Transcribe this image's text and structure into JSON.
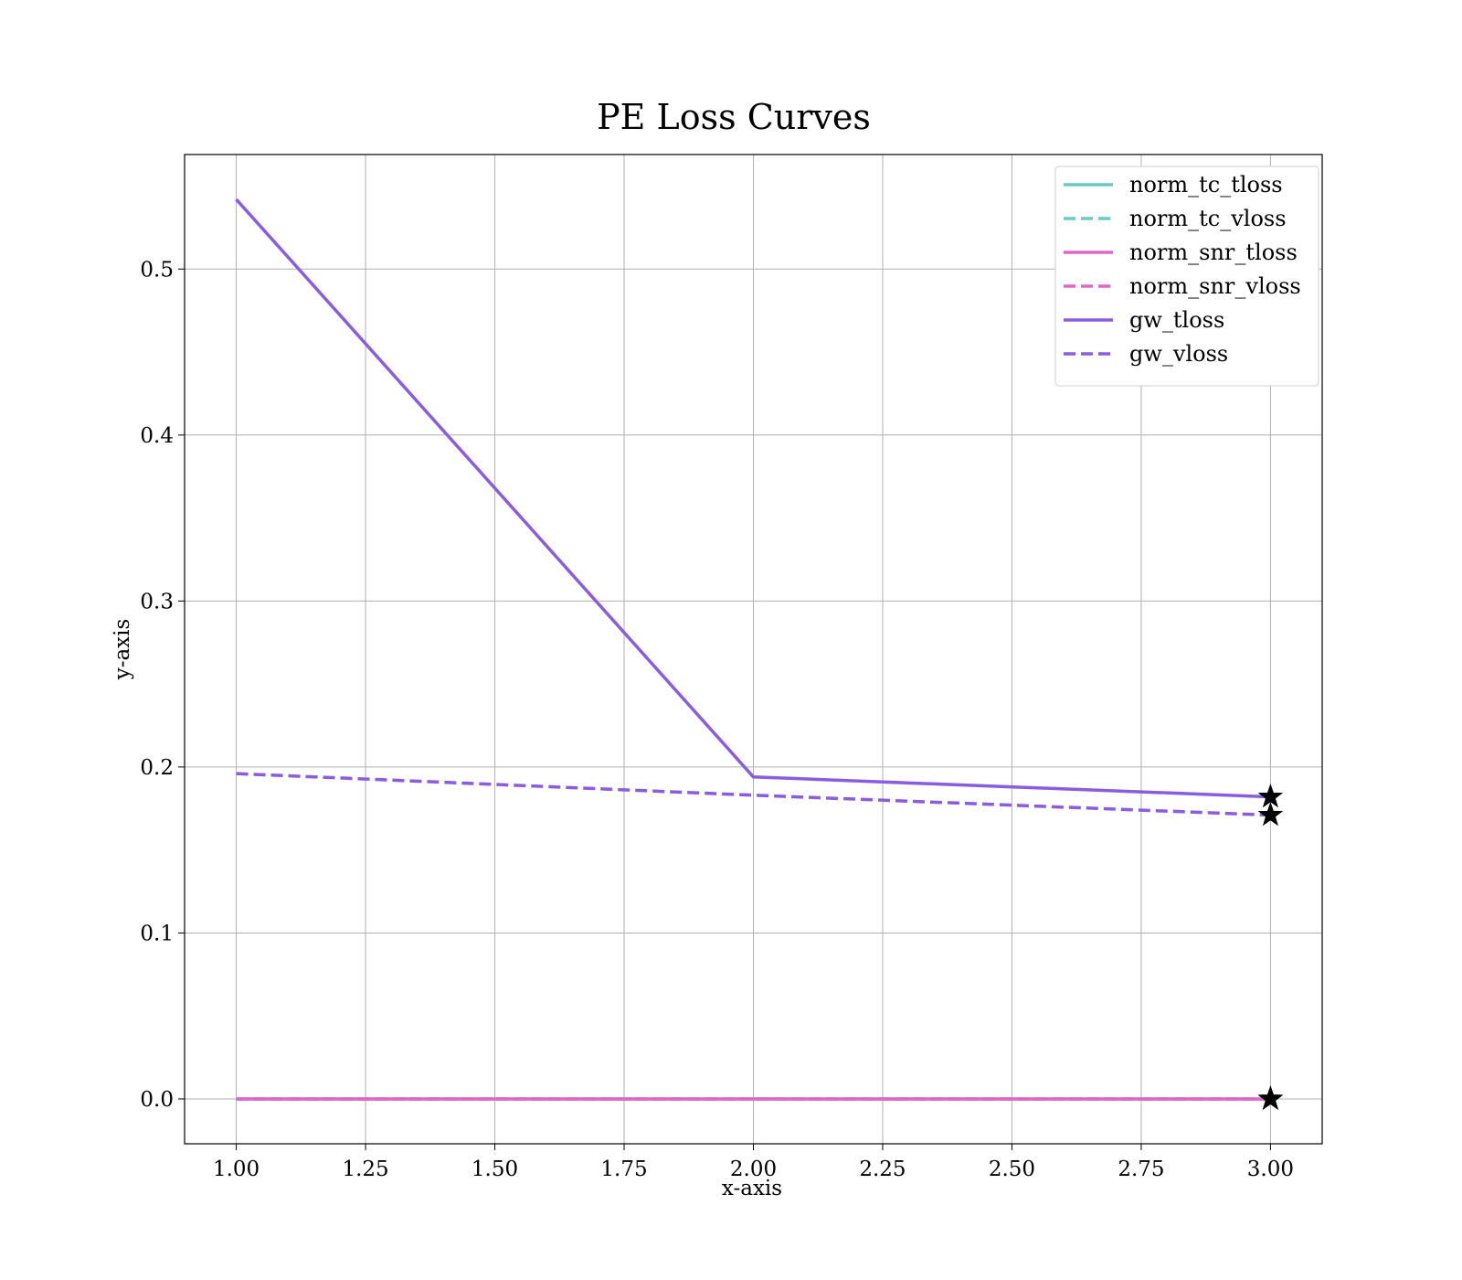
{
  "chart_data": {
    "type": "line",
    "title": "PE Loss Curves",
    "xlabel": "x-axis",
    "ylabel": "y-axis",
    "xlim": [
      0.9,
      3.1
    ],
    "ylim": [
      -0.027,
      0.569
    ],
    "x_ticks": [
      1.0,
      1.25,
      1.5,
      1.75,
      2.0,
      2.25,
      2.5,
      2.75,
      3.0
    ],
    "x_tick_labels": [
      "1.00",
      "1.25",
      "1.50",
      "1.75",
      "2.00",
      "2.25",
      "2.50",
      "2.75",
      "3.00"
    ],
    "y_ticks": [
      0.0,
      0.1,
      0.2,
      0.3,
      0.4,
      0.5
    ],
    "y_tick_labels": [
      "0.0",
      "0.1",
      "0.2",
      "0.3",
      "0.4",
      "0.5"
    ],
    "grid": true,
    "legend_position": "top-right",
    "end_marker": "star",
    "x": [
      1,
      2,
      3
    ],
    "series": [
      {
        "name": "norm_tc_tloss",
        "values": [
          0.0,
          0.0,
          0.0
        ],
        "color": "#66CDC0",
        "dash": false
      },
      {
        "name": "norm_tc_vloss",
        "values": [
          0.0,
          0.0,
          0.0
        ],
        "color": "#66CDC0",
        "dash": true
      },
      {
        "name": "norm_snr_tloss",
        "values": [
          0.0,
          0.0,
          0.0
        ],
        "color": "#E066C8",
        "dash": false
      },
      {
        "name": "norm_snr_vloss",
        "values": [
          0.0,
          0.0,
          0.0
        ],
        "color": "#E066C8",
        "dash": true
      },
      {
        "name": "gw_tloss",
        "values": [
          0.542,
          0.194,
          0.182
        ],
        "color": "#8A5CE0",
        "dash": false
      },
      {
        "name": "gw_vloss",
        "values": [
          0.196,
          0.183,
          0.171
        ],
        "color": "#8A5CE0",
        "dash": true
      }
    ]
  }
}
